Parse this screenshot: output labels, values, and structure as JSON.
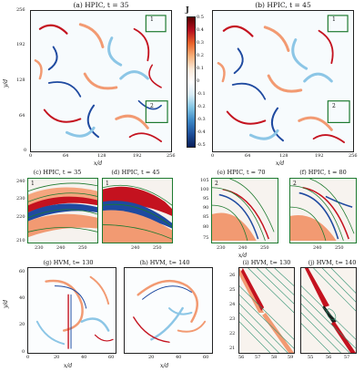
{
  "panels_top": [
    {
      "title": "(a) HPIC, t = 35",
      "box1": "1",
      "box2": "2"
    },
    {
      "title": "(b) HPIC, t = 45",
      "box1": "1",
      "box2": "2"
    }
  ],
  "panels_mid": [
    {
      "title": "(c) HPIC, t = 35",
      "tag": "1"
    },
    {
      "title": "(d) HPIC, t = 45",
      "tag": "1"
    },
    {
      "title": "(e) HPIC, t = 70",
      "tag": "2"
    },
    {
      "title": "(f) HPIC, t = 80",
      "tag": "2"
    }
  ],
  "panels_bot": [
    {
      "title": "(g) HVM, t= 130"
    },
    {
      "title": "(h) HVM, t= 140"
    },
    {
      "title": "(i) HVM, t= 130"
    },
    {
      "title": "(j) HVM, t= 140"
    }
  ],
  "colorbar": {
    "label": "J",
    "ticks": [
      "0.5",
      "0.4",
      "0.3",
      "0.2",
      "0.1",
      "0",
      "-0.1",
      "-0.2",
      "-0.3",
      "-0.4",
      "-0.5"
    ]
  },
  "axes": {
    "top_ylabel": "y/d",
    "top_yticks": [
      "256",
      "192",
      "128",
      "64",
      "0"
    ],
    "top_xticks": [
      "0",
      "64",
      "128",
      "192",
      "256"
    ],
    "top_xlabel": "x/d",
    "mid_c_yticks": [
      "240",
      "230",
      "220",
      "210"
    ],
    "mid_c_xticks": [
      "230",
      "240",
      "250"
    ],
    "mid_d_xticks": [
      "240",
      "250"
    ],
    "mid_e_yticks": [
      "105",
      "100",
      "95",
      "90",
      "85",
      "80",
      "75"
    ],
    "mid_e_xticks": [
      "230",
      "240",
      "250"
    ],
    "mid_f_xticks": [
      "240",
      "250"
    ],
    "mid_xlabel": "x/d",
    "bot_ylabel": "y/d",
    "bot_yticks": [
      "60",
      "40",
      "20",
      "0"
    ],
    "bot_xticks_g": [
      "0",
      "20",
      "40",
      "60"
    ],
    "bot_xticks_h": [
      "20",
      "40",
      "60"
    ],
    "bot_xlabel": "x/d",
    "bot_i_yticks": [
      "26",
      "25",
      "24",
      "23",
      "22",
      "21"
    ],
    "bot_i_xticks": [
      "56",
      "57",
      "58",
      "59"
    ],
    "bot_j_xticks": [
      "55",
      "56",
      "57"
    ]
  },
  "colors": {
    "red": "#c4121f",
    "blue": "#1f4aa0",
    "green": "#1d7a2f",
    "lightblue": "#8cc6e6",
    "lightred": "#f29a72"
  }
}
